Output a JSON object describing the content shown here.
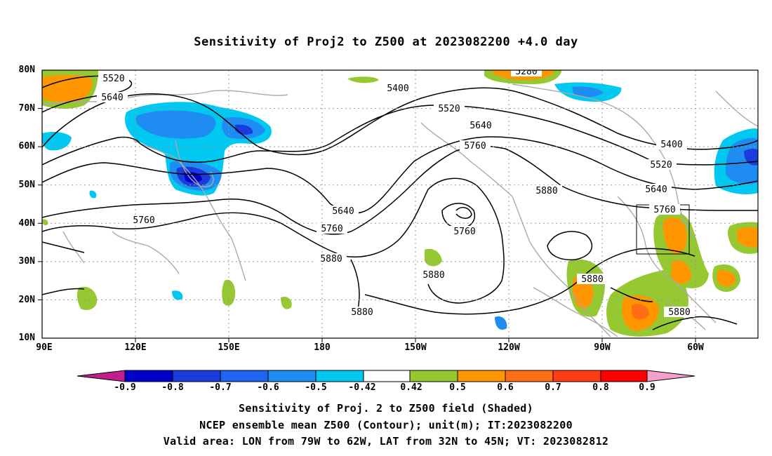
{
  "title": "Sensitivity of Proj2 to Z500 at 2023082200 +4.0 day",
  "lat_labels": [
    "80N",
    "70N",
    "60N",
    "50N",
    "40N",
    "30N",
    "20N",
    "10N"
  ],
  "lon_labels": [
    "90E",
    "120E",
    "150E",
    "180",
    "150W",
    "120W",
    "90W",
    "60W"
  ],
  "contour_labels": [
    "5520",
    "5640",
    "5280",
    "5400",
    "5520",
    "5640",
    "5760",
    "5880",
    "5400",
    "5520",
    "5640",
    "5760",
    "5640",
    "5760",
    "5760",
    "5880",
    "5880",
    "5880",
    "5880",
    "5760"
  ],
  "validation_box": {
    "lon_range": "79W to 62W",
    "lat_range": "32N to 45N"
  },
  "colorbar": {
    "labels": [
      "-0.9",
      "-0.8",
      "-0.7",
      "-0.6",
      "-0.5",
      "-0.42",
      "0.42",
      "0.5",
      "0.6",
      "0.7",
      "0.8",
      "0.9"
    ],
    "colors": [
      "#c41e8c",
      "#0000c8",
      "#1a3cdc",
      "#1e64f0",
      "#1e8cf0",
      "#00c8f0",
      "#ffffff",
      "#96c832",
      "#ff9600",
      "#ff6e14",
      "#ff3c14",
      "#ff0000",
      "#f5a0c8"
    ]
  },
  "captions": {
    "line1": "Sensitivity of Proj. 2 to Z500 field (Shaded)",
    "line2": "NCEP ensemble mean Z500 (Contour); unit(m); IT:2023082200",
    "line3": "Valid area: LON from 79W to 62W, LAT from 32N to 45N; VT: 2023082812"
  }
}
